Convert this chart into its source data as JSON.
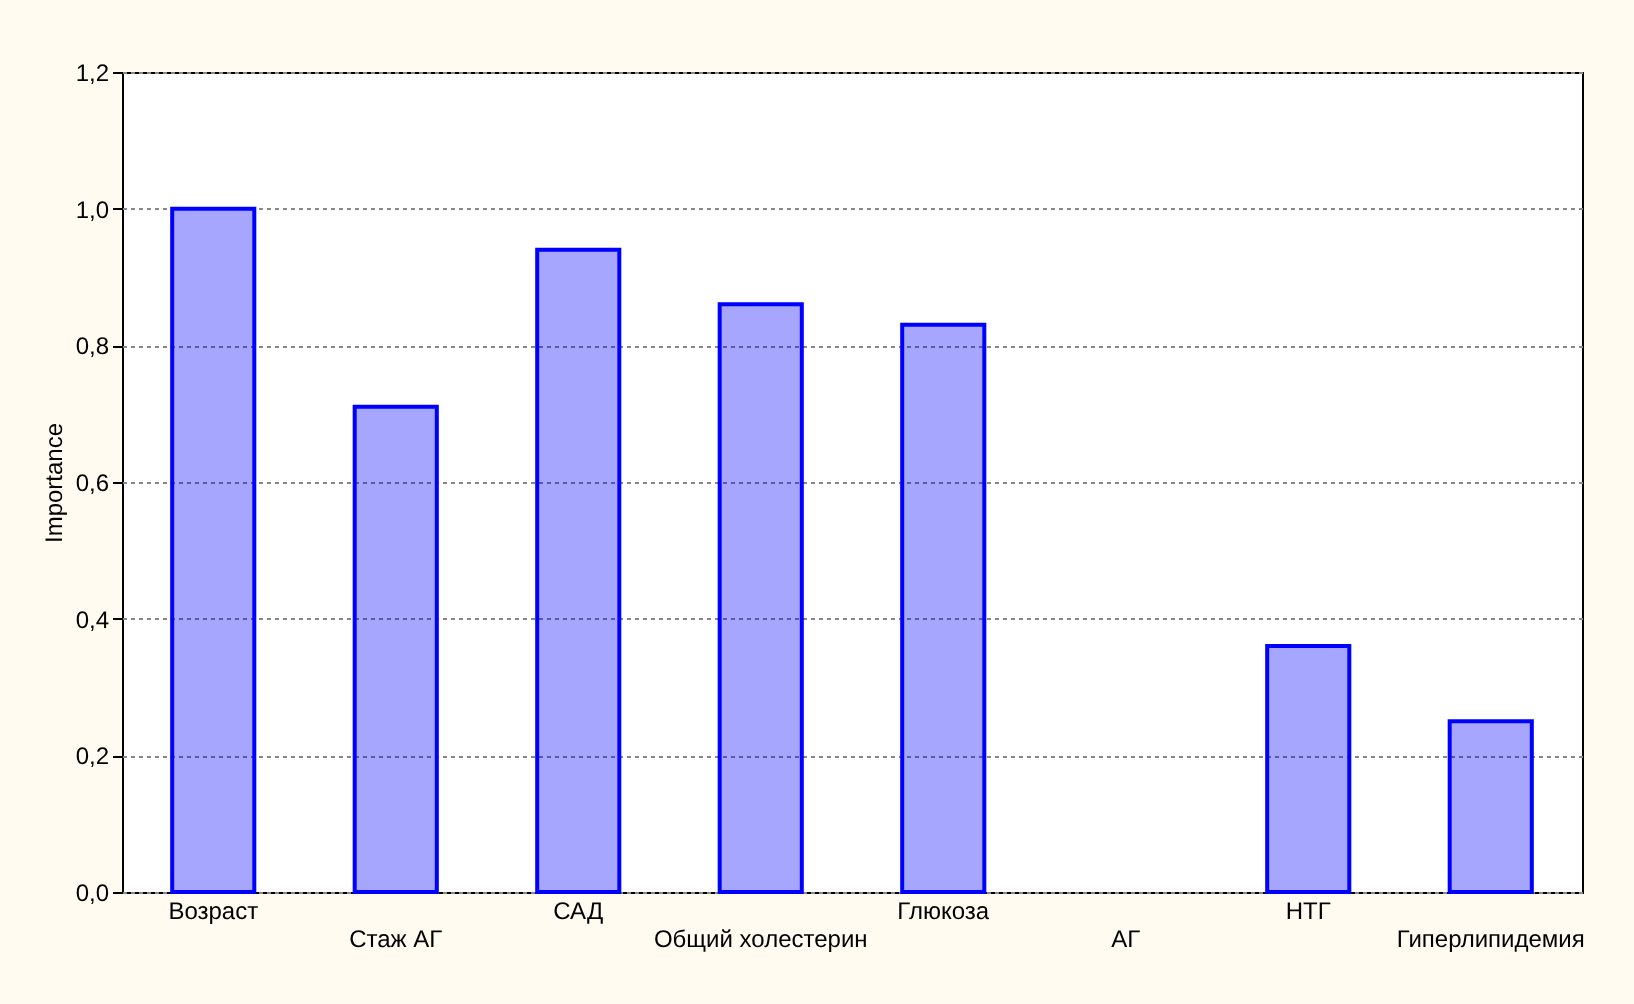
{
  "chart_data": {
    "type": "bar",
    "ylabel": "Importance",
    "categories": [
      "Возраст",
      "Стаж АГ",
      "САД",
      "Общий холестерин",
      "Глюкоза",
      "АГ",
      "НТГ",
      "Гиперлипидемия"
    ],
    "values": [
      1.0,
      0.71,
      0.94,
      0.86,
      0.83,
      null,
      0.36,
      0.25
    ],
    "color": "#0000ff",
    "ylim": [
      0,
      1.2
    ],
    "yticks": [
      {
        "value": 0,
        "label": "0,0"
      },
      {
        "value": 0.2,
        "label": "0,2"
      },
      {
        "value": 0.4,
        "label": "0,4"
      },
      {
        "value": 0.6,
        "label": "0,6"
      },
      {
        "value": 0.8,
        "label": "0,8"
      },
      {
        "value": 1.0,
        "label": "1,0"
      },
      {
        "value": 1.2,
        "label": "1,2"
      }
    ],
    "grid": "y"
  }
}
